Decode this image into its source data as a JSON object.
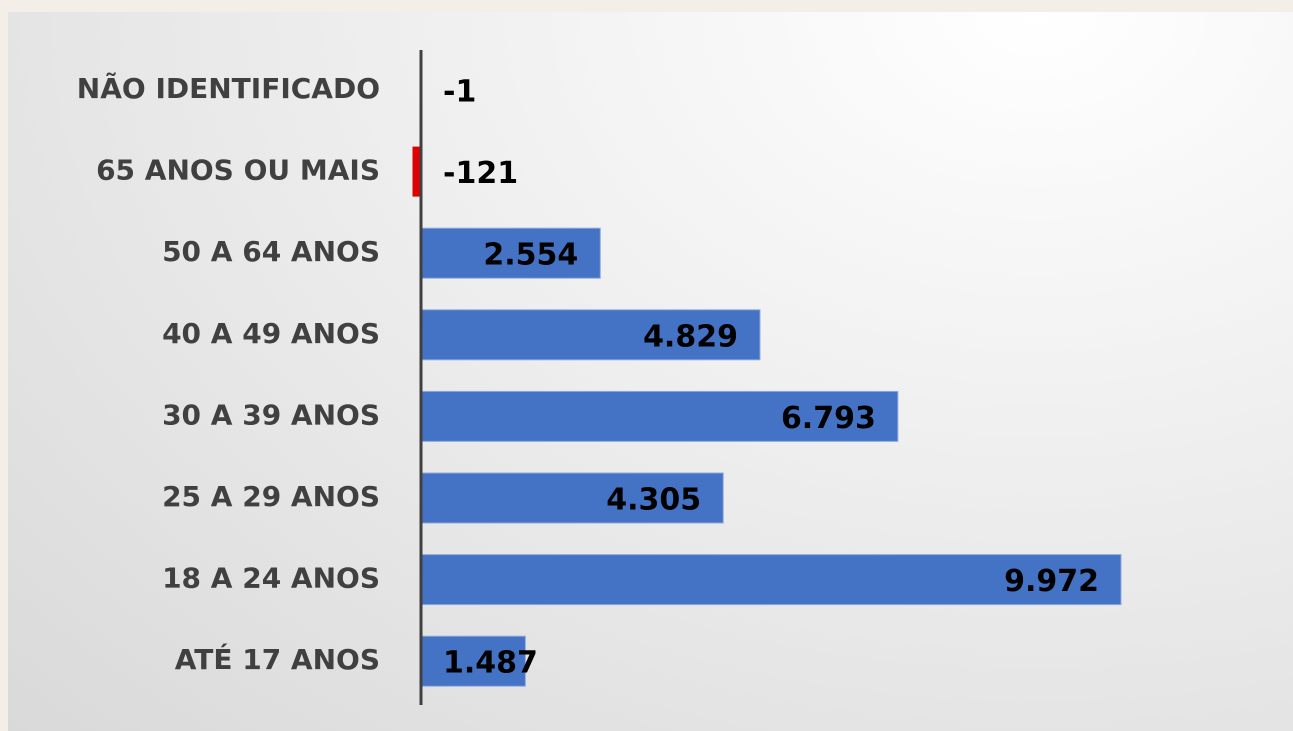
{
  "chart_data": {
    "type": "hbar",
    "categories": [
      "NÃO IDENTIFICADO",
      "65 ANOS OU MAIS",
      "50 A 64 ANOS",
      "40 A 49 ANOS",
      "30 A 39 ANOS",
      "25 A 29 ANOS",
      "18 A 24 ANOS",
      "ATÉ 17 ANOS"
    ],
    "values": [
      -1,
      -121,
      2554,
      4829,
      6793,
      4305,
      9972,
      1487
    ],
    "value_labels": [
      "-1",
      "-121",
      "2.554",
      "4.829",
      "6.793",
      "4.305",
      "9.972",
      "1.487"
    ],
    "color": "#4472c4",
    "negative_color": "#e00000"
  }
}
